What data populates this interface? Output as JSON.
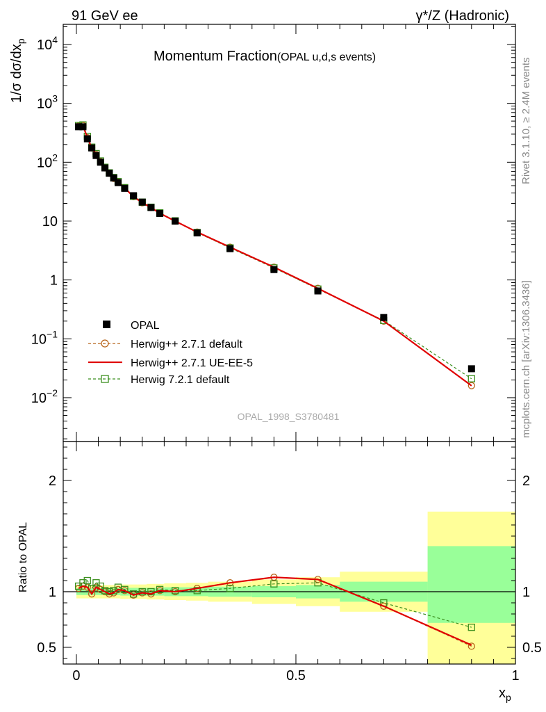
{
  "header": {
    "left": "91 GeV ee",
    "right": "γ*/Z (Hadronic)"
  },
  "side_labels": {
    "rivet": "Rivet 3.1.10, ≥ 2.4M events",
    "mcplots": "mcplots.cern.ch [arXiv:1306.3436]"
  },
  "main_title": "Momentum Fraction",
  "main_subtitle": "(OPAL u,d,s events)",
  "analysis_id": "OPAL_1998_S3780481",
  "y_main_label": "1/σ dσ/dx",
  "y_main_label_sub": "p",
  "y_ratio_label": "Ratio to OPAL",
  "x_label": "x",
  "x_label_sub": "p",
  "colors": {
    "data": "#000000",
    "herwigpp_default": "#b8651b",
    "herwigpp_ueee5": "#e00000",
    "herwig7": "#3b8f1e",
    "band_inner": "#99ff99",
    "band_outer": "#ffff99"
  },
  "chart_data": [
    {
      "type": "scatter",
      "yscale": "log",
      "xlim": [
        -0.03,
        1.0
      ],
      "ylim": [
        0.0018,
        22000
      ],
      "yticks": [
        {
          "v": 0.01,
          "m": "10",
          "e": "−2"
        },
        {
          "v": 0.1,
          "m": "10",
          "e": "−1"
        },
        {
          "v": 1,
          "m": "1",
          "e": ""
        },
        {
          "v": 10,
          "m": "10",
          "e": ""
        },
        {
          "v": 100,
          "m": "10",
          "e": "2"
        },
        {
          "v": 1000,
          "m": "10",
          "e": "3"
        },
        {
          "v": 10000,
          "m": "10",
          "e": "4"
        }
      ],
      "legend_position": "middle-left",
      "series": [
        {
          "name": "OPAL",
          "style": "data",
          "x": [
            0.005,
            0.015,
            0.025,
            0.035,
            0.045,
            0.055,
            0.065,
            0.075,
            0.085,
            0.095,
            0.11,
            0.13,
            0.15,
            0.17,
            0.19,
            0.225,
            0.275,
            0.35,
            0.45,
            0.55,
            0.7,
            0.9
          ],
          "y": [
            400,
            400,
            250,
            175,
            130,
            100,
            80,
            65,
            54,
            45,
            36,
            27,
            21,
            17,
            13.5,
            10,
            6.3,
            3.4,
            1.5,
            0.65,
            0.23,
            0.031
          ]
        },
        {
          "name": "Herwig++ 2.7.1 default",
          "style": "circle_dashed",
          "x": [
            0.005,
            0.015,
            0.025,
            0.035,
            0.045,
            0.055,
            0.065,
            0.075,
            0.085,
            0.095,
            0.11,
            0.13,
            0.15,
            0.17,
            0.19,
            0.225,
            0.275,
            0.35,
            0.45,
            0.55,
            0.7,
            0.9
          ],
          "y": [
            410,
            420,
            260,
            175,
            135,
            102,
            80,
            65,
            53,
            46,
            36.5,
            26,
            20.5,
            17,
            13.6,
            10,
            6.5,
            3.6,
            1.65,
            0.72,
            0.2,
            0.016
          ]
        },
        {
          "name": "Herwig++ 2.7.1 UE-EE-5",
          "style": "solid",
          "x": [
            0.005,
            0.015,
            0.025,
            0.035,
            0.045,
            0.055,
            0.065,
            0.075,
            0.085,
            0.095,
            0.11,
            0.13,
            0.15,
            0.17,
            0.19,
            0.225,
            0.275,
            0.35,
            0.45,
            0.55,
            0.7,
            0.9
          ],
          "y": [
            410,
            420,
            260,
            175,
            135,
            102,
            80,
            65,
            53,
            46,
            36.5,
            26,
            20.5,
            17,
            13.6,
            10,
            6.5,
            3.6,
            1.65,
            0.72,
            0.2,
            0.016
          ]
        },
        {
          "name": "Herwig 7.2.1 default",
          "style": "square_dashed",
          "x": [
            0.005,
            0.015,
            0.025,
            0.035,
            0.045,
            0.055,
            0.065,
            0.075,
            0.085,
            0.095,
            0.11,
            0.13,
            0.15,
            0.17,
            0.19,
            0.225,
            0.275,
            0.35,
            0.45,
            0.55,
            0.7,
            0.9
          ],
          "y": [
            420,
            430,
            275,
            180,
            140,
            105,
            82,
            66,
            55,
            47,
            37,
            26.5,
            21,
            17.2,
            13.8,
            10.1,
            6.4,
            3.5,
            1.6,
            0.7,
            0.205,
            0.021
          ]
        }
      ]
    },
    {
      "type": "line",
      "xlim": [
        -0.03,
        1.0
      ],
      "ylim": [
        0.35,
        2.35
      ],
      "xticks": [
        0,
        0.5,
        1
      ],
      "yticks": [
        0.5,
        1,
        2
      ],
      "reference_line": 1,
      "bands": [
        {
          "x0": 0.0,
          "x1": 0.01,
          "inner": [
            0.97,
            1.03
          ],
          "outer": [
            0.94,
            1.06
          ]
        },
        {
          "x0": 0.01,
          "x1": 0.02,
          "inner": [
            0.97,
            1.03
          ],
          "outer": [
            0.94,
            1.06
          ]
        },
        {
          "x0": 0.02,
          "x1": 0.03,
          "inner": [
            0.97,
            1.03
          ],
          "outer": [
            0.94,
            1.06
          ]
        },
        {
          "x0": 0.03,
          "x1": 0.04,
          "inner": [
            0.97,
            1.03
          ],
          "outer": [
            0.94,
            1.06
          ]
        },
        {
          "x0": 0.04,
          "x1": 0.05,
          "inner": [
            0.97,
            1.03
          ],
          "outer": [
            0.94,
            1.06
          ]
        },
        {
          "x0": 0.05,
          "x1": 0.06,
          "inner": [
            0.97,
            1.03
          ],
          "outer": [
            0.94,
            1.06
          ]
        },
        {
          "x0": 0.06,
          "x1": 0.07,
          "inner": [
            0.97,
            1.03
          ],
          "outer": [
            0.94,
            1.06
          ]
        },
        {
          "x0": 0.07,
          "x1": 0.08,
          "inner": [
            0.97,
            1.03
          ],
          "outer": [
            0.94,
            1.06
          ]
        },
        {
          "x0": 0.08,
          "x1": 0.09,
          "inner": [
            0.97,
            1.03
          ],
          "outer": [
            0.94,
            1.06
          ]
        },
        {
          "x0": 0.09,
          "x1": 0.1,
          "inner": [
            0.97,
            1.03
          ],
          "outer": [
            0.94,
            1.06
          ]
        },
        {
          "x0": 0.1,
          "x1": 0.12,
          "inner": [
            0.965,
            1.035
          ],
          "outer": [
            0.935,
            1.065
          ]
        },
        {
          "x0": 0.12,
          "x1": 0.14,
          "inner": [
            0.965,
            1.035
          ],
          "outer": [
            0.935,
            1.065
          ]
        },
        {
          "x0": 0.14,
          "x1": 0.16,
          "inner": [
            0.965,
            1.035
          ],
          "outer": [
            0.935,
            1.065
          ]
        },
        {
          "x0": 0.16,
          "x1": 0.18,
          "inner": [
            0.965,
            1.035
          ],
          "outer": [
            0.93,
            1.07
          ]
        },
        {
          "x0": 0.18,
          "x1": 0.2,
          "inner": [
            0.965,
            1.035
          ],
          "outer": [
            0.93,
            1.07
          ]
        },
        {
          "x0": 0.2,
          "x1": 0.25,
          "inner": [
            0.96,
            1.04
          ],
          "outer": [
            0.925,
            1.075
          ]
        },
        {
          "x0": 0.25,
          "x1": 0.3,
          "inner": [
            0.96,
            1.04
          ],
          "outer": [
            0.92,
            1.08
          ]
        },
        {
          "x0": 0.3,
          "x1": 0.4,
          "inner": [
            0.955,
            1.045
          ],
          "outer": [
            0.91,
            1.09
          ]
        },
        {
          "x0": 0.4,
          "x1": 0.5,
          "inner": [
            0.95,
            1.05
          ],
          "outer": [
            0.89,
            1.11
          ]
        },
        {
          "x0": 0.5,
          "x1": 0.6,
          "inner": [
            0.94,
            1.06
          ],
          "outer": [
            0.87,
            1.13
          ]
        },
        {
          "x0": 0.6,
          "x1": 0.8,
          "inner": [
            0.91,
            1.09
          ],
          "outer": [
            0.82,
            1.18
          ]
        },
        {
          "x0": 0.8,
          "x1": 1.0,
          "inner": [
            0.72,
            1.41
          ],
          "outer": [
            0.35,
            1.72
          ]
        }
      ],
      "series": [
        {
          "name": "Herwig++ 2.7.1 default",
          "style": "circle_dashed",
          "x": [
            0.005,
            0.015,
            0.025,
            0.035,
            0.045,
            0.055,
            0.065,
            0.075,
            0.085,
            0.095,
            0.11,
            0.13,
            0.15,
            0.17,
            0.19,
            0.225,
            0.275,
            0.35,
            0.45,
            0.55,
            0.7,
            0.9
          ],
          "y": [
            1.03,
            1.05,
            1.04,
            0.98,
            1.04,
            1.02,
            1.0,
            0.98,
            0.99,
            1.02,
            1.01,
            0.97,
            0.99,
            0.98,
            1.01,
            1.0,
            1.03,
            1.08,
            1.13,
            1.11,
            0.87,
            0.51
          ]
        },
        {
          "name": "Herwig++ 2.7.1 UE-EE-5",
          "style": "solid",
          "x": [
            0.005,
            0.015,
            0.025,
            0.035,
            0.045,
            0.055,
            0.065,
            0.075,
            0.085,
            0.095,
            0.11,
            0.13,
            0.15,
            0.17,
            0.19,
            0.225,
            0.275,
            0.35,
            0.45,
            0.55,
            0.7,
            0.9
          ],
          "y": [
            1.03,
            1.05,
            1.04,
            0.98,
            1.04,
            1.02,
            1.0,
            0.98,
            0.99,
            1.02,
            1.01,
            0.97,
            0.99,
            0.98,
            1.01,
            1.0,
            1.03,
            1.08,
            1.13,
            1.11,
            0.87,
            0.52
          ]
        },
        {
          "name": "Herwig 7.2.1 default",
          "style": "square_dashed",
          "x": [
            0.005,
            0.015,
            0.025,
            0.035,
            0.045,
            0.055,
            0.065,
            0.075,
            0.085,
            0.095,
            0.11,
            0.13,
            0.15,
            0.17,
            0.19,
            0.225,
            0.275,
            0.35,
            0.45,
            0.55,
            0.7,
            0.9
          ],
          "y": [
            1.05,
            1.08,
            1.1,
            1.03,
            1.08,
            1.05,
            1.01,
            1.0,
            1.01,
            1.04,
            1.02,
            0.98,
            1.0,
            1.0,
            1.02,
            1.01,
            1.01,
            1.03,
            1.07,
            1.08,
            0.9,
            0.68
          ]
        }
      ]
    }
  ]
}
